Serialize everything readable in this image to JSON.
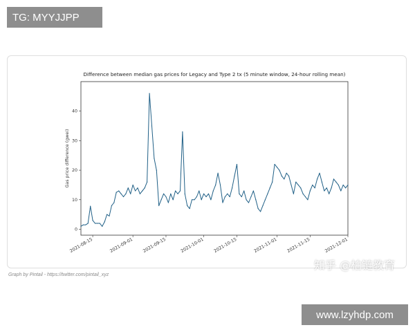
{
  "watermarks": {
    "top_left": "TG: MYYJJPP",
    "bottom_right_url": "www.lzyhdp.com",
    "zhihu": "知乎 @柏链教育"
  },
  "caption": "Graph by Pintail - https://twitter.com/pintail_xyz",
  "colors": {
    "line": "#1f5f86",
    "frame": "#333333"
  },
  "chart_data": {
    "type": "line",
    "title": "Difference between median gas prices for Legacy and Type 2 tx (5 minute window, 24-hour rolling mean)",
    "xlabel": "",
    "ylabel": "Gas price difference (gwei)",
    "xlim": [
      "2021-08-10",
      "2021-12-01"
    ],
    "ylim": [
      -2,
      50
    ],
    "yticks": [
      0,
      10,
      20,
      30,
      40
    ],
    "xticks": [
      "2021-08-15",
      "2021-09-01",
      "2021-09-15",
      "2021-10-01",
      "2021-10-15",
      "2021-11-01",
      "2021-11-15",
      "2021-12-01"
    ],
    "grid": false,
    "series": [
      {
        "x": [
          "2021-08-10",
          "2021-08-11",
          "2021-08-12",
          "2021-08-13",
          "2021-08-14",
          "2021-08-15",
          "2021-08-16",
          "2021-08-17",
          "2021-08-18",
          "2021-08-19",
          "2021-08-20",
          "2021-08-21",
          "2021-08-22",
          "2021-08-23",
          "2021-08-24",
          "2021-08-25",
          "2021-08-26",
          "2021-08-27",
          "2021-08-28",
          "2021-08-29",
          "2021-08-30",
          "2021-08-31",
          "2021-09-01",
          "2021-09-02",
          "2021-09-03",
          "2021-09-04",
          "2021-09-05",
          "2021-09-06",
          "2021-09-07",
          "2021-09-08",
          "2021-09-09",
          "2021-09-10",
          "2021-09-11",
          "2021-09-12",
          "2021-09-13",
          "2021-09-14",
          "2021-09-15",
          "2021-09-16",
          "2021-09-17",
          "2021-09-18",
          "2021-09-19",
          "2021-09-20",
          "2021-09-21",
          "2021-09-22",
          "2021-09-23",
          "2021-09-24",
          "2021-09-25",
          "2021-09-26",
          "2021-09-27",
          "2021-09-28",
          "2021-09-29",
          "2021-09-30",
          "2021-10-01",
          "2021-10-02",
          "2021-10-03",
          "2021-10-04",
          "2021-10-05",
          "2021-10-06",
          "2021-10-07",
          "2021-10-08",
          "2021-10-09",
          "2021-10-10",
          "2021-10-11",
          "2021-10-12",
          "2021-10-13",
          "2021-10-14",
          "2021-10-15",
          "2021-10-16",
          "2021-10-17",
          "2021-10-18",
          "2021-10-19",
          "2021-10-20",
          "2021-10-21",
          "2021-10-22",
          "2021-10-23",
          "2021-10-24",
          "2021-10-25",
          "2021-10-26",
          "2021-10-27",
          "2021-10-28",
          "2021-10-29",
          "2021-10-30",
          "2021-10-31",
          "2021-11-01",
          "2021-11-02",
          "2021-11-03",
          "2021-11-04",
          "2021-11-05",
          "2021-11-06",
          "2021-11-07",
          "2021-11-08",
          "2021-11-09",
          "2021-11-10",
          "2021-11-11",
          "2021-11-12",
          "2021-11-13",
          "2021-11-14",
          "2021-11-15",
          "2021-11-16",
          "2021-11-17",
          "2021-11-18",
          "2021-11-19",
          "2021-11-20",
          "2021-11-21",
          "2021-11-22",
          "2021-11-23",
          "2021-11-24",
          "2021-11-25",
          "2021-11-26",
          "2021-11-27",
          "2021-11-28",
          "2021-11-29",
          "2021-11-30",
          "2021-12-01"
        ],
        "y": [
          1,
          1.5,
          1.5,
          2,
          7.8,
          3,
          2,
          2,
          2,
          1,
          2.5,
          5,
          4.5,
          8,
          9,
          12.5,
          13,
          12,
          11,
          12,
          14,
          12,
          15,
          13,
          14,
          12,
          13,
          14,
          16,
          46,
          35,
          24,
          20,
          8,
          10,
          12,
          11,
          9,
          12,
          10,
          13,
          12,
          13,
          33,
          12,
          8,
          7,
          10,
          10,
          11,
          13,
          10,
          12,
          11,
          12,
          10,
          13,
          15,
          19,
          15,
          9,
          11,
          12,
          11,
          14,
          18,
          22,
          12,
          11,
          13,
          10,
          9,
          11,
          13,
          10,
          7,
          6,
          8,
          10,
          12,
          14,
          16,
          22,
          21,
          20,
          18,
          17,
          19,
          18,
          15,
          12,
          16,
          15,
          14,
          12,
          11,
          10,
          13,
          15,
          14,
          17,
          19,
          16,
          13,
          14,
          12,
          14,
          17,
          16,
          15,
          13,
          15,
          14,
          15
        ]
      }
    ]
  }
}
